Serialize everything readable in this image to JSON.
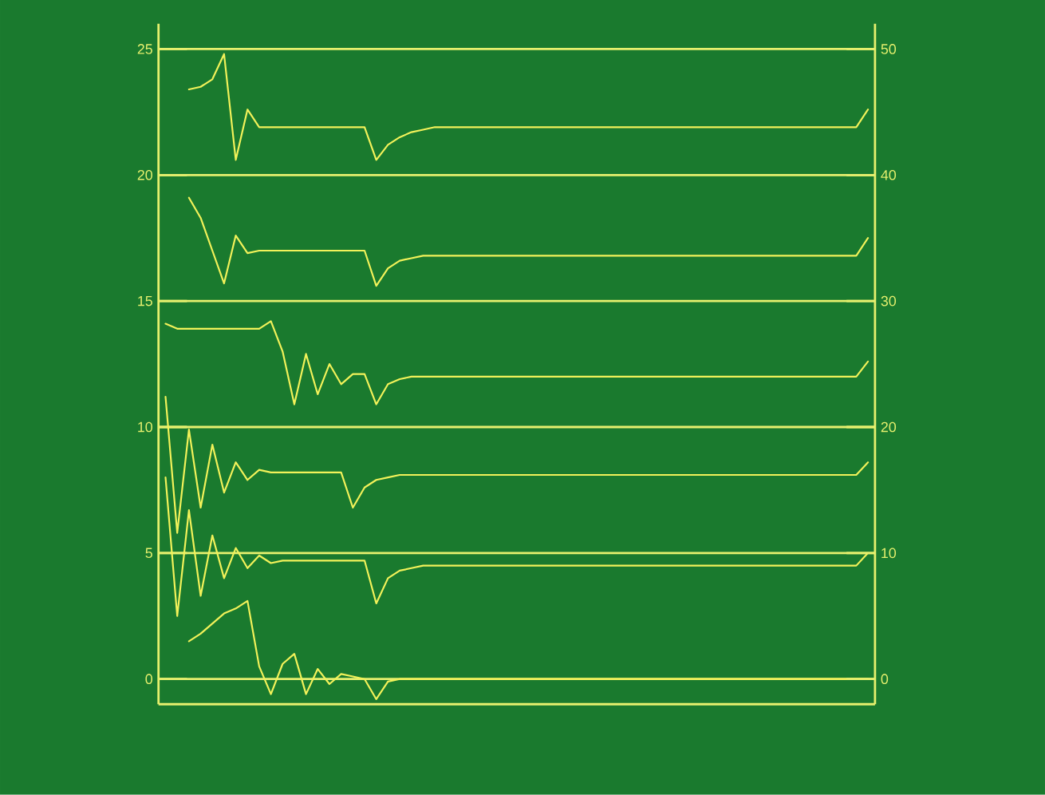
{
  "chart_data": {
    "type": "line",
    "categories": [
      null,
      null,
      null,
      null,
      null,
      null,
      null,
      null,
      null,
      null,
      null,
      null,
      null,
      null,
      null,
      null,
      null,
      null,
      null,
      null,
      null,
      null,
      null,
      null,
      null,
      null,
      null,
      null,
      null,
      null,
      null,
      null,
      null,
      null,
      null,
      null,
      null,
      null,
      null,
      null,
      null,
      null,
      null,
      null,
      null,
      null,
      null,
      null,
      null,
      null,
      null,
      null,
      null,
      null,
      null,
      null,
      null,
      null,
      null,
      null,
      null
    ],
    "series": [
      {
        "color": "#f2f25a",
        "values": [
          null,
          null,
          23.4,
          23.5,
          23.8,
          24.8,
          20.6,
          22.6,
          21.9,
          21.9,
          21.9,
          21.9,
          21.9,
          21.9,
          21.9,
          21.9,
          21.9,
          21.9,
          20.6,
          21.2,
          21.5,
          21.7,
          21.8,
          21.9,
          21.9,
          21.9,
          21.9,
          21.9,
          21.9,
          21.9,
          21.9,
          21.9,
          21.9,
          21.9,
          21.9,
          21.9,
          21.9,
          21.9,
          21.9,
          21.9,
          21.9,
          21.9,
          21.9,
          21.9,
          21.9,
          21.9,
          21.9,
          21.9,
          21.9,
          21.9,
          21.9,
          21.9,
          21.9,
          21.9,
          21.9,
          21.9,
          21.9,
          21.9,
          21.9,
          21.9,
          22.6
        ]
      },
      {
        "color": "#f2f25a",
        "values": [
          null,
          null,
          19.1,
          18.3,
          17.0,
          15.7,
          17.6,
          16.9,
          17.0,
          17.0,
          17.0,
          17.0,
          17.0,
          17.0,
          17.0,
          17.0,
          17.0,
          17.0,
          15.6,
          16.3,
          16.6,
          16.7,
          16.8,
          16.8,
          16.8,
          16.8,
          16.8,
          16.8,
          16.8,
          16.8,
          16.8,
          16.8,
          16.8,
          16.8,
          16.8,
          16.8,
          16.8,
          16.8,
          16.8,
          16.8,
          16.8,
          16.8,
          16.8,
          16.8,
          16.8,
          16.8,
          16.8,
          16.8,
          16.8,
          16.8,
          16.8,
          16.8,
          16.8,
          16.8,
          16.8,
          16.8,
          16.8,
          16.8,
          16.8,
          16.8,
          17.5
        ]
      },
      {
        "color": "#f2f25a",
        "values": [
          14.1,
          13.9,
          13.9,
          13.9,
          13.9,
          13.9,
          13.9,
          13.9,
          13.9,
          14.2,
          13.0,
          10.9,
          12.9,
          11.3,
          12.5,
          11.7,
          12.1,
          12.1,
          10.9,
          11.7,
          11.9,
          12.0,
          12.0,
          12.0,
          12.0,
          12.0,
          12.0,
          12.0,
          12.0,
          12.0,
          12.0,
          12.0,
          12.0,
          12.0,
          12.0,
          12.0,
          12.0,
          12.0,
          12.0,
          12.0,
          12.0,
          12.0,
          12.0,
          12.0,
          12.0,
          12.0,
          12.0,
          12.0,
          12.0,
          12.0,
          12.0,
          12.0,
          12.0,
          12.0,
          12.0,
          12.0,
          12.0,
          12.0,
          12.0,
          12.0,
          12.6
        ]
      },
      {
        "color": "#f2f25a",
        "values": [
          11.2,
          5.8,
          9.9,
          6.8,
          9.3,
          7.4,
          8.6,
          7.9,
          8.3,
          8.2,
          8.2,
          8.2,
          8.2,
          8.2,
          8.2,
          8.2,
          6.8,
          7.6,
          7.9,
          8.0,
          8.1,
          8.1,
          8.1,
          8.1,
          8.1,
          8.1,
          8.1,
          8.1,
          8.1,
          8.1,
          8.1,
          8.1,
          8.1,
          8.1,
          8.1,
          8.1,
          8.1,
          8.1,
          8.1,
          8.1,
          8.1,
          8.1,
          8.1,
          8.1,
          8.1,
          8.1,
          8.1,
          8.1,
          8.1,
          8.1,
          8.1,
          8.1,
          8.1,
          8.1,
          8.1,
          8.1,
          8.1,
          8.1,
          8.1,
          8.1,
          8.6
        ]
      },
      {
        "color": "#f2f25a",
        "values": [
          8.0,
          2.5,
          6.7,
          3.3,
          5.7,
          4.0,
          5.2,
          4.4,
          4.9,
          4.6,
          4.7,
          4.7,
          4.7,
          4.7,
          4.7,
          4.7,
          4.7,
          4.7,
          3.0,
          4.0,
          4.3,
          4.4,
          4.5,
          4.5,
          4.5,
          4.5,
          4.5,
          4.5,
          4.5,
          4.5,
          4.5,
          4.5,
          4.5,
          4.5,
          4.5,
          4.5,
          4.5,
          4.5,
          4.5,
          4.5,
          4.5,
          4.5,
          4.5,
          4.5,
          4.5,
          4.5,
          4.5,
          4.5,
          4.5,
          4.5,
          4.5,
          4.5,
          4.5,
          4.5,
          4.5,
          4.5,
          4.5,
          4.5,
          4.5,
          4.5,
          5.0
        ]
      },
      {
        "color": "#f2f25a",
        "values": [
          null,
          null,
          1.5,
          1.8,
          2.2,
          2.6,
          2.8,
          3.1,
          0.5,
          -0.6,
          0.6,
          1.0,
          -0.6,
          0.4,
          -0.2,
          0.2,
          0.1,
          0.0,
          -0.8,
          -0.1,
          0.0,
          0.0,
          0.0,
          0.0,
          0.0,
          0.0,
          0.0,
          0.0,
          0.0,
          0.0,
          0.0,
          0.0,
          0.0,
          0.0,
          0.0,
          0.0,
          0.0,
          0.0,
          0.0,
          0.0,
          0.0,
          0.0,
          0.0,
          0.0,
          0.0,
          0.0,
          0.0,
          0.0,
          0.0,
          0.0,
          0.0,
          0.0,
          0.0,
          0.0,
          0.0,
          0.0,
          0.0,
          0.0,
          0.0,
          0.0,
          0.0
        ]
      }
    ],
    "ylim": [
      -1,
      26
    ],
    "yticks": [
      0,
      5,
      10,
      15,
      20,
      25
    ],
    "y2lim": [
      -2,
      52
    ],
    "y2ticks": [
      0,
      10,
      20,
      30,
      40,
      50
    ],
    "grid": "y",
    "marker": "none",
    "line_style": "solid",
    "tick_labels": "y"
  }
}
